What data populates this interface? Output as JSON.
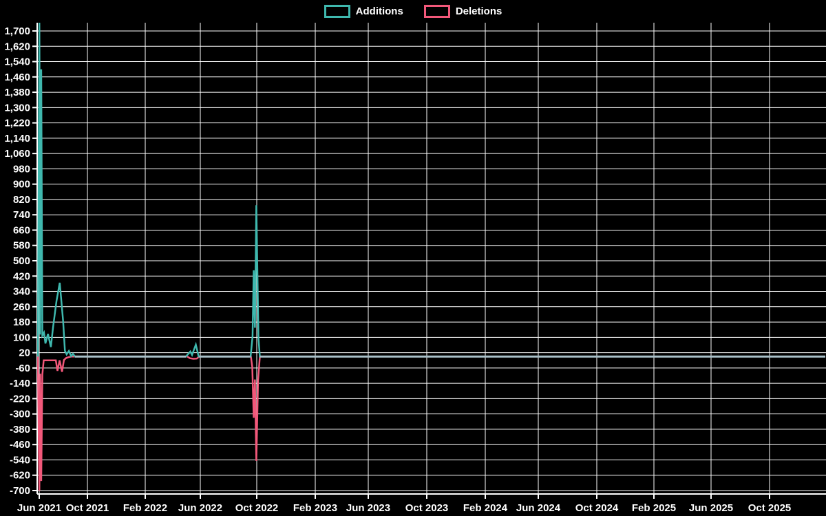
{
  "legend": {
    "items": [
      {
        "label": "Additions",
        "color": "#3fb8ae"
      },
      {
        "label": "Deletions",
        "color": "#f2587a"
      }
    ]
  },
  "colors": {
    "background": "#000000",
    "grid": "#ffffff",
    "axis": "#ffffff",
    "text": "#ffffff",
    "additions": "#3fb8ae",
    "deletions": "#f2587a",
    "overlap_zero_line": "#a9c0c8"
  },
  "chart_data": {
    "type": "line",
    "title": "",
    "xlabel": "",
    "ylabel": "",
    "x_tick_labels": [
      "Jun 2021",
      "Oct 2021",
      "Feb 2022",
      "Jun 2022",
      "Oct 2022",
      "Feb 2023",
      "Jun 2023",
      "Oct 2023",
      "Feb 2024",
      "Jun 2024",
      "Oct 2024",
      "Feb 2025",
      "Jun 2025",
      "Oct 2025"
    ],
    "y_tick_labels": [
      "1,700",
      "1,620",
      "1,540",
      "1,460",
      "1,380",
      "1,300",
      "1,220",
      "1,140",
      "1,060",
      "980",
      "900",
      "820",
      "740",
      "660",
      "580",
      "500",
      "420",
      "340",
      "260",
      "180",
      "100",
      "20",
      "-60",
      "-140",
      "-220",
      "-300",
      "-380",
      "-460",
      "-540",
      "-620",
      "-700"
    ],
    "ylim": [
      -700,
      1700
    ],
    "grid": true,
    "legend_position": "top-center",
    "x_unit": "months_since_jun_2021",
    "series": [
      {
        "name": "Additions",
        "color": "#3fb8ae",
        "points": [
          [
            -0.1,
            0
          ],
          [
            0.01,
            1755
          ],
          [
            0.07,
            115
          ],
          [
            0.14,
            1500
          ],
          [
            0.22,
            110
          ],
          [
            0.34,
            125
          ],
          [
            0.44,
            68
          ],
          [
            0.62,
            118
          ],
          [
            0.83,
            50
          ],
          [
            0.98,
            150
          ],
          [
            1.23,
            290
          ],
          [
            1.46,
            385
          ],
          [
            1.7,
            185
          ],
          [
            1.83,
            30
          ],
          [
            1.95,
            11
          ],
          [
            2.11,
            29
          ],
          [
            2.27,
            2
          ],
          [
            2.4,
            14
          ],
          [
            2.55,
            0
          ],
          [
            10.44,
            0
          ],
          [
            10.63,
            15
          ],
          [
            10.76,
            26
          ],
          [
            10.88,
            8
          ],
          [
            11.15,
            62
          ],
          [
            11.35,
            0
          ],
          [
            15.05,
            0
          ],
          [
            15.19,
            105
          ],
          [
            15.27,
            450
          ],
          [
            15.36,
            150
          ],
          [
            15.46,
            790
          ],
          [
            15.61,
            95
          ],
          [
            15.71,
            0
          ],
          [
            55.97,
            0
          ]
        ]
      },
      {
        "name": "Deletions",
        "color": "#f2587a",
        "points": [
          [
            -0.1,
            0
          ],
          [
            0.01,
            -700
          ],
          [
            0.07,
            -90
          ],
          [
            0.14,
            -650
          ],
          [
            0.22,
            -95
          ],
          [
            0.32,
            -20
          ],
          [
            1.18,
            -20
          ],
          [
            1.3,
            -75
          ],
          [
            1.45,
            -20
          ],
          [
            1.62,
            -80
          ],
          [
            1.76,
            -18
          ],
          [
            1.91,
            -8
          ],
          [
            2.11,
            -3
          ],
          [
            2.3,
            0
          ],
          [
            10.54,
            0
          ],
          [
            10.73,
            -9
          ],
          [
            10.98,
            -12
          ],
          [
            11.22,
            -11
          ],
          [
            11.39,
            0
          ],
          [
            15.07,
            0
          ],
          [
            15.17,
            -55
          ],
          [
            15.27,
            -320
          ],
          [
            15.36,
            -120
          ],
          [
            15.46,
            -545
          ],
          [
            15.58,
            -125
          ],
          [
            15.71,
            0
          ],
          [
            55.97,
            0
          ]
        ]
      }
    ],
    "both_zero_overlap_segments": [
      [
        2.55,
        10.44
      ],
      [
        11.39,
        15.05
      ],
      [
        15.71,
        55.97
      ]
    ]
  }
}
